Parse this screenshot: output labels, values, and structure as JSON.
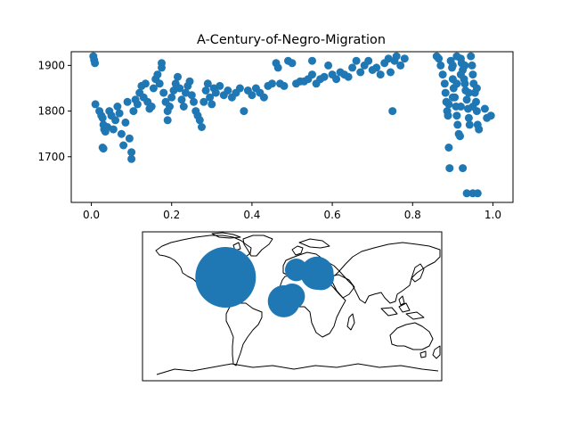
{
  "chart_data": [
    {
      "type": "scatter",
      "title": "A-Century-of-Negro-Migration",
      "xlabel": "",
      "ylabel": "",
      "xlim": [
        -0.05,
        1.05
      ],
      "ylim": [
        1600,
        1930
      ],
      "xticks": [
        "0.0",
        "0.2",
        "0.4",
        "0.6",
        "0.8",
        "1.0"
      ],
      "yticks": [
        "1700",
        "1800",
        "1900"
      ],
      "grid": false,
      "color": "#1f77b4",
      "points": [
        [
          0.005,
          1920
        ],
        [
          0.007,
          1912
        ],
        [
          0.009,
          1905
        ],
        [
          0.01,
          1815
        ],
        [
          0.02,
          1800
        ],
        [
          0.025,
          1790
        ],
        [
          0.028,
          1785
        ],
        [
          0.03,
          1770
        ],
        [
          0.032,
          1760
        ],
        [
          0.035,
          1755
        ],
        [
          0.028,
          1720
        ],
        [
          0.03,
          1718
        ],
        [
          0.04,
          1765
        ],
        [
          0.045,
          1800
        ],
        [
          0.05,
          1790
        ],
        [
          0.055,
          1760
        ],
        [
          0.06,
          1780
        ],
        [
          0.065,
          1810
        ],
        [
          0.07,
          1795
        ],
        [
          0.075,
          1750
        ],
        [
          0.08,
          1725
        ],
        [
          0.085,
          1775
        ],
        [
          0.09,
          1820
        ],
        [
          0.095,
          1740
        ],
        [
          0.1,
          1710
        ],
        [
          0.1,
          1695
        ],
        [
          0.105,
          1800
        ],
        [
          0.11,
          1825
        ],
        [
          0.115,
          1815
        ],
        [
          0.12,
          1840
        ],
        [
          0.125,
          1855
        ],
        [
          0.13,
          1830
        ],
        [
          0.135,
          1860
        ],
        [
          0.14,
          1820
        ],
        [
          0.145,
          1805
        ],
        [
          0.15,
          1810
        ],
        [
          0.155,
          1850
        ],
        [
          0.16,
          1870
        ],
        [
          0.165,
          1880
        ],
        [
          0.17,
          1860
        ],
        [
          0.175,
          1895
        ],
        [
          0.175,
          1905
        ],
        [
          0.18,
          1840
        ],
        [
          0.185,
          1820
        ],
        [
          0.19,
          1800
        ],
        [
          0.19,
          1780
        ],
        [
          0.195,
          1810
        ],
        [
          0.2,
          1830
        ],
        [
          0.205,
          1845
        ],
        [
          0.21,
          1860
        ],
        [
          0.215,
          1875
        ],
        [
          0.22,
          1850
        ],
        [
          0.225,
          1825
        ],
        [
          0.23,
          1810
        ],
        [
          0.235,
          1840
        ],
        [
          0.24,
          1855
        ],
        [
          0.245,
          1865
        ],
        [
          0.25,
          1835
        ],
        [
          0.255,
          1820
        ],
        [
          0.26,
          1800
        ],
        [
          0.265,
          1790
        ],
        [
          0.27,
          1780
        ],
        [
          0.275,
          1765
        ],
        [
          0.28,
          1820
        ],
        [
          0.285,
          1845
        ],
        [
          0.29,
          1860
        ],
        [
          0.295,
          1830
        ],
        [
          0.3,
          1815
        ],
        [
          0.305,
          1850
        ],
        [
          0.31,
          1840
        ],
        [
          0.32,
          1855
        ],
        [
          0.33,
          1835
        ],
        [
          0.34,
          1845
        ],
        [
          0.35,
          1830
        ],
        [
          0.36,
          1840
        ],
        [
          0.37,
          1850
        ],
        [
          0.38,
          1800
        ],
        [
          0.39,
          1845
        ],
        [
          0.4,
          1835
        ],
        [
          0.41,
          1850
        ],
        [
          0.42,
          1840
        ],
        [
          0.43,
          1830
        ],
        [
          0.44,
          1855
        ],
        [
          0.45,
          1860
        ],
        [
          0.46,
          1905
        ],
        [
          0.465,
          1895
        ],
        [
          0.47,
          1860
        ],
        [
          0.48,
          1855
        ],
        [
          0.49,
          1910
        ],
        [
          0.5,
          1905
        ],
        [
          0.51,
          1860
        ],
        [
          0.52,
          1865
        ],
        [
          0.53,
          1865
        ],
        [
          0.54,
          1870
        ],
        [
          0.55,
          1880
        ],
        [
          0.55,
          1910
        ],
        [
          0.56,
          1860
        ],
        [
          0.57,
          1870
        ],
        [
          0.58,
          1875
        ],
        [
          0.59,
          1900
        ],
        [
          0.6,
          1880
        ],
        [
          0.61,
          1870
        ],
        [
          0.62,
          1885
        ],
        [
          0.63,
          1880
        ],
        [
          0.64,
          1875
        ],
        [
          0.65,
          1895
        ],
        [
          0.66,
          1910
        ],
        [
          0.67,
          1885
        ],
        [
          0.68,
          1900
        ],
        [
          0.69,
          1910
        ],
        [
          0.7,
          1890
        ],
        [
          0.71,
          1895
        ],
        [
          0.72,
          1880
        ],
        [
          0.73,
          1905
        ],
        [
          0.74,
          1915
        ],
        [
          0.745,
          1885
        ],
        [
          0.75,
          1800
        ],
        [
          0.755,
          1910
        ],
        [
          0.76,
          1920
        ],
        [
          0.77,
          1900
        ],
        [
          0.78,
          1915
        ],
        [
          0.86,
          1920
        ],
        [
          0.865,
          1915
        ],
        [
          0.87,
          1900
        ],
        [
          0.875,
          1880
        ],
        [
          0.88,
          1860
        ],
        [
          0.882,
          1840
        ],
        [
          0.884,
          1820
        ],
        [
          0.886,
          1800
        ],
        [
          0.888,
          1790
        ],
        [
          0.89,
          1720
        ],
        [
          0.892,
          1675
        ],
        [
          0.895,
          1910
        ],
        [
          0.898,
          1895
        ],
        [
          0.9,
          1870
        ],
        [
          0.902,
          1850
        ],
        [
          0.905,
          1830
        ],
        [
          0.908,
          1810
        ],
        [
          0.91,
          1790
        ],
        [
          0.912,
          1770
        ],
        [
          0.915,
          1750
        ],
        [
          0.918,
          1745
        ],
        [
          0.92,
          1915
        ],
        [
          0.922,
          1905
        ],
        [
          0.925,
          1890
        ],
        [
          0.925,
          1675
        ],
        [
          0.928,
          1870
        ],
        [
          0.93,
          1860
        ],
        [
          0.932,
          1845
        ],
        [
          0.935,
          1825
        ],
        [
          0.935,
          1620
        ],
        [
          0.938,
          1805
        ],
        [
          0.94,
          1785
        ],
        [
          0.942,
          1770
        ],
        [
          0.945,
          1920
        ],
        [
          0.948,
          1900
        ],
        [
          0.95,
          1880
        ],
        [
          0.95,
          1620
        ],
        [
          0.952,
          1860
        ],
        [
          0.955,
          1840
        ],
        [
          0.958,
          1820
        ],
        [
          0.96,
          1800
        ],
        [
          0.962,
          1770
        ],
        [
          0.962,
          1620
        ],
        [
          0.965,
          1760
        ],
        [
          0.98,
          1805
        ],
        [
          0.985,
          1785
        ],
        [
          0.995,
          1790
        ],
        [
          0.89,
          1815
        ],
        [
          0.9,
          1900
        ],
        [
          0.91,
          1920
        ],
        [
          0.92,
          1880
        ],
        [
          0.93,
          1900
        ],
        [
          0.94,
          1840
        ],
        [
          0.95,
          1810
        ],
        [
          0.96,
          1850
        ],
        [
          0.9,
          1830
        ],
        [
          0.91,
          1860
        ],
        [
          0.92,
          1810
        ]
      ]
    },
    {
      "type": "map",
      "projection": "equirectangular",
      "color": "#1f77b4",
      "bubbles": [
        {
          "lon": -80,
          "lat": 35,
          "magnitude": 1.0
        },
        {
          "lon": -10,
          "lat": 6,
          "magnitude": 0.28
        },
        {
          "lon": 0,
          "lat": 12,
          "magnitude": 0.18
        },
        {
          "lon": 5,
          "lat": 44,
          "magnitude": 0.14
        },
        {
          "lon": 30,
          "lat": 40,
          "magnitude": 0.3
        },
        {
          "lon": 35,
          "lat": 35,
          "magnitude": 0.18
        }
      ]
    }
  ]
}
